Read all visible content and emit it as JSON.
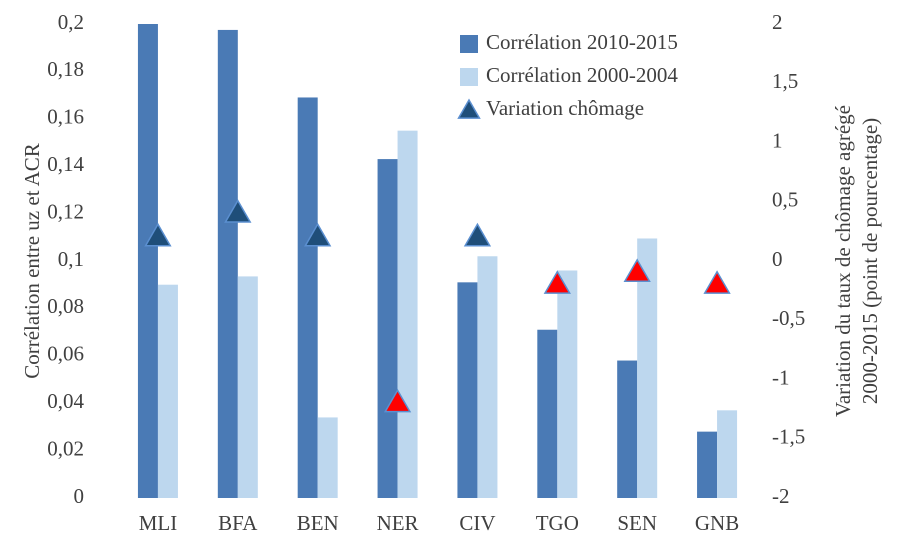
{
  "chart_data": {
    "type": "bar",
    "categories": [
      "MLI",
      "BFA",
      "BEN",
      "NER",
      "CIV",
      "TGO",
      "SEN",
      "GNB"
    ],
    "series": [
      {
        "name": "Corrélation 2010-2015",
        "color": "#4a7ab5",
        "values": [
          0.2,
          0.1975,
          0.169,
          0.143,
          0.091,
          0.071,
          0.058,
          0.028
        ]
      },
      {
        "name": "Corrélation 2000-2004",
        "color": "#bdd7ee",
        "values": [
          0.09,
          0.0935,
          0.034,
          0.155,
          0.102,
          0.096,
          0.1095,
          0.037
        ]
      },
      {
        "name": "Variation chômage",
        "type": "triangle",
        "axis": "y2",
        "color": "#1f4e79",
        "colors": [
          "#1f4e79",
          "#1f4e79",
          "#1f4e79",
          "#ff0000",
          "#1f4e79",
          "#ff0000",
          "#ff0000",
          "#ff0000"
        ],
        "values": [
          0.2,
          0.4,
          0.2,
          -1.2,
          0.2,
          -0.2,
          -0.1,
          -0.2
        ]
      }
    ],
    "ylabel": "Corrélation  entre uz et ACR",
    "y2label": [
      "Variation du taux de chômage agrégé",
      "2000-2015 (point de pourcentage)"
    ],
    "ylim": [
      0,
      0.2
    ],
    "yticks": [
      0,
      {
        "value": 0.02,
        "label": "0,02"
      },
      {
        "value": 0.04,
        "label": "0,04"
      },
      {
        "value": 0.06,
        "label": "0,06"
      },
      {
        "value": 0.08,
        "label": "0,08"
      },
      {
        "value": 0.1,
        "label": "0,1"
      },
      {
        "value": 0.12,
        "label": "0,12"
      },
      {
        "value": 0.14,
        "label": "0,14"
      },
      {
        "value": 0.16,
        "label": "0,16"
      },
      {
        "value": 0.18,
        "label": "0,18"
      },
      {
        "value": 0.2,
        "label": "0,2"
      }
    ],
    "y2lim": [
      -2,
      2
    ],
    "y2ticks": [
      -2,
      {
        "value": -1.5,
        "label": "-1,5"
      },
      -1,
      {
        "value": -0.5,
        "label": "-0,5"
      },
      0,
      {
        "value": 0.5,
        "label": "0,5"
      },
      1,
      {
        "value": 1.5,
        "label": "1,5"
      },
      2
    ],
    "grid": false,
    "legend": "top-right"
  }
}
